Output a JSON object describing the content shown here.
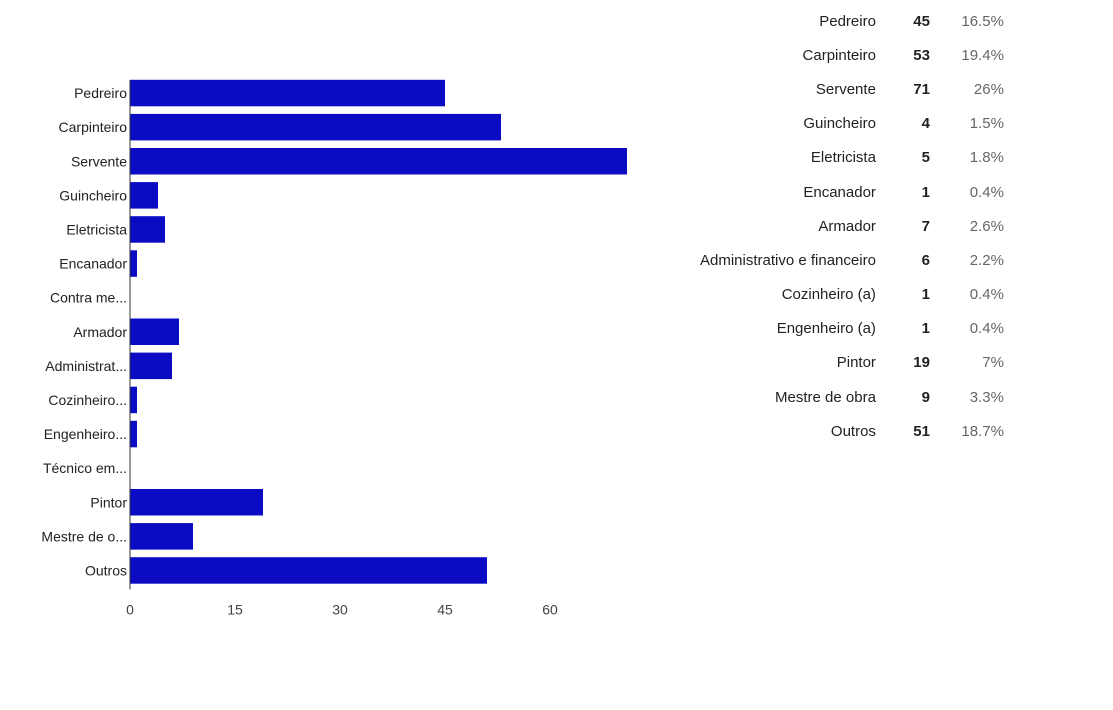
{
  "chart_data": {
    "type": "bar",
    "orientation": "horizontal",
    "categories": [
      "Pedreiro",
      "Carpinteiro",
      "Servente",
      "Guincheiro",
      "Eletricista",
      "Encanador",
      "Contra me...",
      "Armador",
      "Administrat...",
      "Cozinheiro...",
      "Engenheiro...",
      "Técnico em...",
      "Pintor",
      "Mestre de o...",
      "Outros"
    ],
    "values": [
      45,
      53,
      71,
      4,
      5,
      1,
      0,
      7,
      6,
      1,
      1,
      0,
      19,
      9,
      51
    ],
    "xticks": [
      "0",
      "15",
      "30",
      "45",
      "60"
    ],
    "xlim": [
      0,
      75
    ],
    "title": "",
    "xlabel": "",
    "ylabel": "",
    "bar_color": "#0b0bc4",
    "grid": false,
    "legend": "none"
  },
  "summary": [
    {
      "label": "Pedreiro",
      "count": "45",
      "percent": "16.5%"
    },
    {
      "label": "Carpinteiro",
      "count": "53",
      "percent": "19.4%"
    },
    {
      "label": "Servente",
      "count": "71",
      "percent": "26%"
    },
    {
      "label": "Guincheiro",
      "count": "4",
      "percent": "1.5%"
    },
    {
      "label": "Eletricista",
      "count": "5",
      "percent": "1.8%"
    },
    {
      "label": "Encanador",
      "count": "1",
      "percent": "0.4%"
    },
    {
      "label": "Armador",
      "count": "7",
      "percent": "2.6%"
    },
    {
      "label": "Administrativo e financeiro",
      "count": "6",
      "percent": "2.2%"
    },
    {
      "label": "Cozinheiro (a)",
      "count": "1",
      "percent": "0.4%"
    },
    {
      "label": "Engenheiro (a)",
      "count": "1",
      "percent": "0.4%"
    },
    {
      "label": "Pintor",
      "count": "19",
      "percent": "7%"
    },
    {
      "label": "Mestre de obra",
      "count": "9",
      "percent": "3.3%"
    },
    {
      "label": "Outros",
      "count": "51",
      "percent": "18.7%"
    }
  ]
}
